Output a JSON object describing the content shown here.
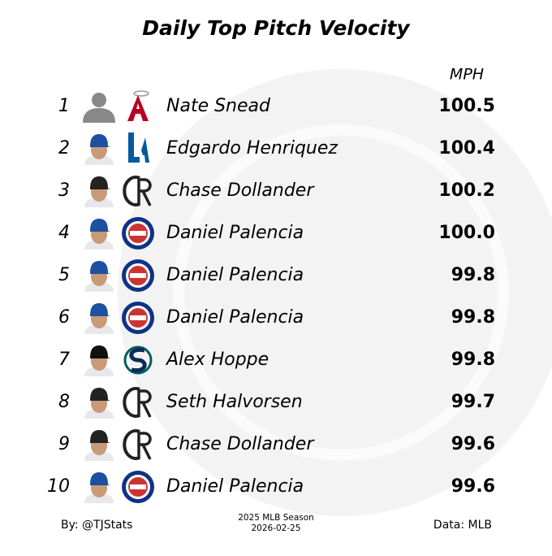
{
  "header": {
    "title": "Daily Top Pitch Velocity",
    "column": "MPH"
  },
  "rows": [
    {
      "rank": "1",
      "name": "Nate Snead",
      "velocity": "100.5"
    },
    {
      "rank": "2",
      "name": "Edgardo Henriquez",
      "velocity": "100.4"
    },
    {
      "rank": "3",
      "name": "Chase Dollander",
      "velocity": "100.2"
    },
    {
      "rank": "4",
      "name": "Daniel Palencia",
      "velocity": "100.0"
    },
    {
      "rank": "5",
      "name": "Daniel Palencia",
      "velocity": "99.8"
    },
    {
      "rank": "6",
      "name": "Daniel Palencia",
      "velocity": "99.8"
    },
    {
      "rank": "7",
      "name": "Alex Hoppe",
      "velocity": "99.8"
    },
    {
      "rank": "8",
      "name": "Seth Halvorsen",
      "velocity": "99.7"
    },
    {
      "rank": "9",
      "name": "Chase Dollander",
      "velocity": "99.6"
    },
    {
      "rank": "10",
      "name": "Daniel Palencia",
      "velocity": "99.6"
    }
  ],
  "footer": {
    "credit": "By: @TJStats",
    "season": "2025 MLB Season",
    "date": "2026-02-25",
    "source": "Data: MLB"
  }
}
